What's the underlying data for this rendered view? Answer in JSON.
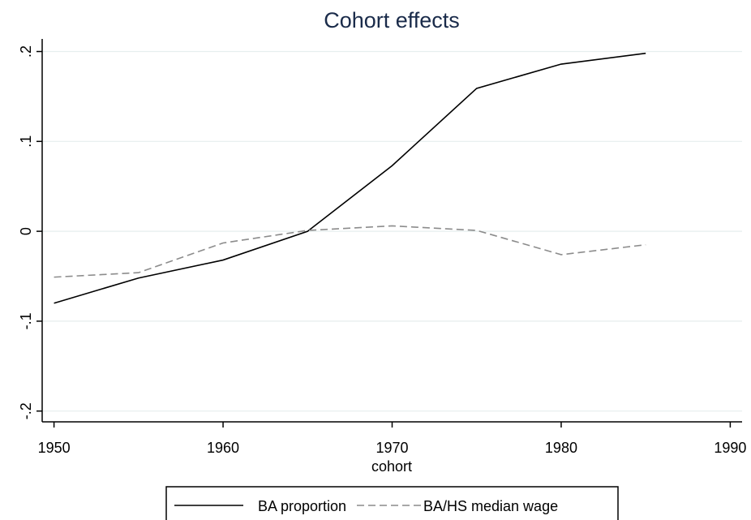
{
  "chart_data": {
    "type": "line",
    "title": "Cohort effects",
    "x_label": "cohort",
    "x": [
      1950,
      1955,
      1960,
      1965,
      1970,
      1975,
      1980,
      1985
    ],
    "series": [
      {
        "name": "BA proportion",
        "color": "#000000",
        "line_style": "solid",
        "values": [
          -0.08,
          -0.052,
          -0.032,
          0,
          0.073,
          0.159,
          0.186,
          0.198
        ]
      },
      {
        "name": "BA/HS median wage",
        "color": "#8c8c8c",
        "line_style": "dashed",
        "values": [
          -0.051,
          -0.046,
          -0.013,
          0.001,
          0.006,
          0.001,
          -0.026,
          -0.015
        ]
      }
    ],
    "xlim": [
      1949.3,
      1990.7
    ],
    "xticks": [
      1950,
      1960,
      1970,
      1980,
      1990
    ],
    "ylim": [
      -0.212,
      0.214
    ],
    "yticks": [
      {
        "value": -0.2,
        "label": "-.2"
      },
      {
        "value": -0.1,
        "label": "-.1"
      },
      0,
      {
        "value": 0.1,
        "label": ".1"
      },
      {
        "value": 0.2,
        "label": ".2"
      }
    ],
    "grid": true,
    "legend": "bottom"
  }
}
